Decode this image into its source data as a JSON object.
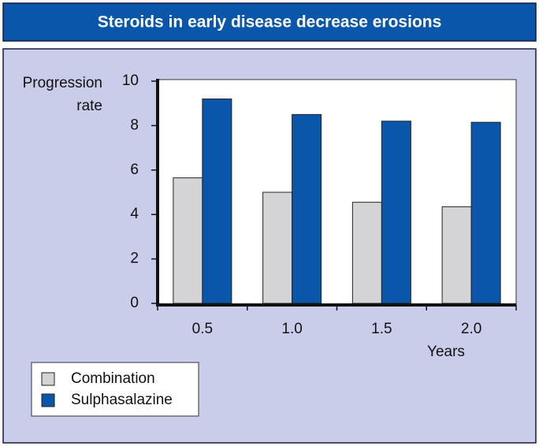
{
  "chart_data": {
    "type": "bar",
    "title": "Steroids in early disease decrease erosions",
    "ylabel": [
      "Progression",
      "rate"
    ],
    "xlabel": "Years",
    "categories": [
      "0.5",
      "1.0",
      "1.5",
      "2.0"
    ],
    "series": [
      {
        "name": "Combination",
        "color": "#d4d4d6",
        "values": [
          5.65,
          5.0,
          4.55,
          4.35
        ]
      },
      {
        "name": "Sulphasalazine",
        "color": "#0a56aa",
        "values": [
          9.2,
          8.5,
          8.2,
          8.15
        ]
      }
    ],
    "ylim": [
      0,
      10
    ],
    "yticks": [
      0,
      2,
      4,
      6,
      8,
      10
    ],
    "legend": "bottom-left"
  }
}
